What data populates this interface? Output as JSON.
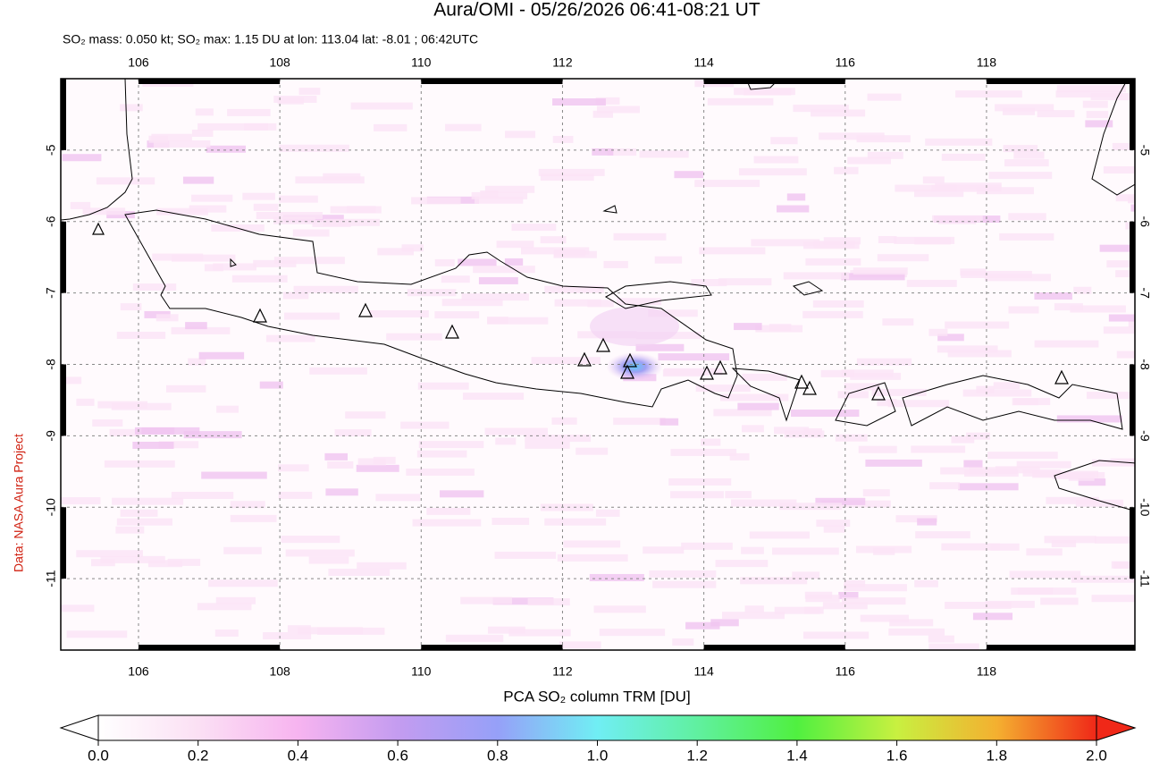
{
  "title": "Aura/OMI - 05/26/2026 06:41-08:21 UT",
  "subtitle": "SO₂ mass: 0.050 kt; SO₂ max: 1.15 DU at lon: 113.04 lat: -8.01 ; 06:42UTC",
  "credit": "Data: NASA Aura Project",
  "map": {
    "xlim": [
      104.9,
      120.1
    ],
    "ylim": [
      -12,
      -4
    ],
    "xticks": [
      106,
      108,
      110,
      112,
      114,
      116,
      118
    ],
    "yticks": [
      -5,
      -6,
      -7,
      -8,
      -9,
      -10,
      -11
    ]
  },
  "colorbar": {
    "label": "PCA SO₂ column TRM [DU]",
    "range": [
      0,
      2
    ],
    "ticks": [
      {
        "value": 0,
        "label": "0.0"
      },
      0.2,
      0.4,
      0.6,
      0.8,
      {
        "value": 1,
        "label": "1.0"
      },
      1.2,
      1.4,
      1.6,
      1.8,
      {
        "value": 2,
        "label": "2.0"
      }
    ]
  }
}
